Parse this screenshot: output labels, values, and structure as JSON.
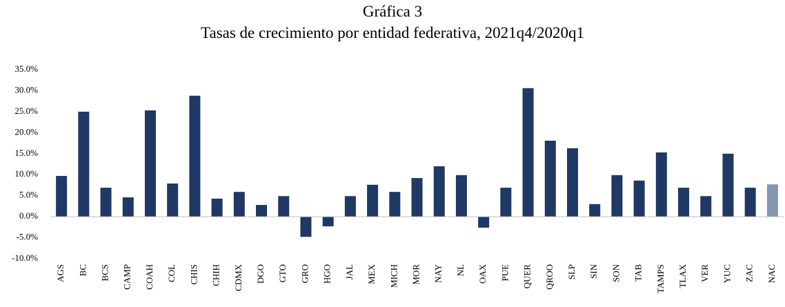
{
  "chart_data": {
    "type": "bar",
    "title": "Gráfica 3",
    "subtitle": "Tasas de crecimiento por entidad federativa, 2021q4/2020q1",
    "categories": [
      "AGS",
      "BC",
      "BCS",
      "CAMP",
      "COAH",
      "COL",
      "CHIS",
      "CHIH",
      "CDMX",
      "DGO",
      "GTO",
      "GRO",
      "HGO",
      "JAL",
      "MEX",
      "MICH",
      "MOR",
      "NAY",
      "NL",
      "OAX",
      "PUE",
      "QUER",
      "QROO",
      "SLP",
      "SIN",
      "SON",
      "TAB",
      "TAMPS",
      "TLAX",
      "VER",
      "YUC",
      "ZAC",
      "NAC"
    ],
    "values": [
      9.7,
      25.0,
      6.9,
      4.6,
      25.3,
      7.9,
      28.8,
      4.3,
      5.9,
      2.8,
      4.9,
      -4.8,
      -2.3,
      4.9,
      7.6,
      5.9,
      9.2,
      12.0,
      9.9,
      -2.6,
      6.9,
      30.6,
      18.1,
      16.3,
      3.0,
      9.9,
      8.6,
      15.3,
      6.9,
      4.9,
      15.0,
      6.9,
      7.7
    ],
    "colors": [
      "#1f3864",
      "#1f3864",
      "#1f3864",
      "#1f3864",
      "#1f3864",
      "#1f3864",
      "#1f3864",
      "#1f3864",
      "#1f3864",
      "#1f3864",
      "#1f3864",
      "#1f3864",
      "#1f3864",
      "#1f3864",
      "#1f3864",
      "#1f3864",
      "#1f3864",
      "#1f3864",
      "#1f3864",
      "#1f3864",
      "#1f3864",
      "#1f3864",
      "#1f3864",
      "#1f3864",
      "#1f3864",
      "#1f3864",
      "#1f3864",
      "#1f3864",
      "#1f3864",
      "#1f3864",
      "#1f3864",
      "#1f3864",
      "#8497b0"
    ],
    "ylim": [
      -10,
      35
    ],
    "yticks": [
      {
        "value": -10,
        "label": "-10.0%"
      },
      {
        "value": -5,
        "label": "-5.0%"
      },
      {
        "value": 0,
        "label": "0.0%"
      },
      {
        "value": 5,
        "label": "5.0%"
      },
      {
        "value": 10,
        "label": "10.0%"
      },
      {
        "value": 15,
        "label": "15.0%"
      },
      {
        "value": 20,
        "label": "20.0%"
      },
      {
        "value": 25,
        "label": "25.0%"
      },
      {
        "value": 30,
        "label": "30.0%"
      },
      {
        "value": 35,
        "label": "35.0%"
      }
    ],
    "grid": false
  }
}
